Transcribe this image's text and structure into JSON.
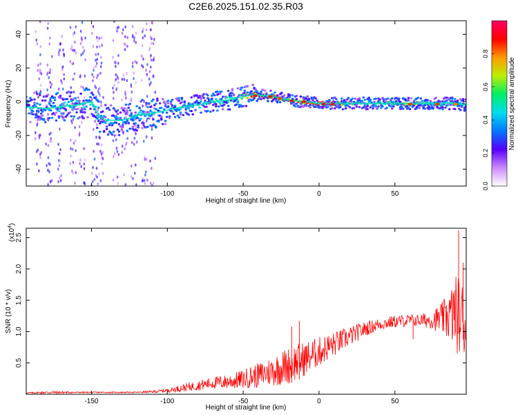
{
  "figure": {
    "title": "C2E6.2025.151.02.35.R03"
  },
  "chart_data": [
    {
      "type": "heatmap",
      "title": "C2E6.2025.151.02.35.R03",
      "xlabel": "Height of straight line (km)",
      "ylabel": "Frequency (Hz)",
      "xlim": [
        -193,
        97
      ],
      "ylim": [
        -50,
        48
      ],
      "xticks": [
        -150,
        -100,
        -50,
        0,
        50
      ],
      "yticks": [
        -40,
        -20,
        0,
        20,
        40
      ],
      "colorbar": {
        "label": "Normalized spectral amplitude",
        "range": [
          0,
          1
        ],
        "ticks": [
          "0.0",
          "0.2",
          "0.4",
          "0.6",
          "0.8"
        ],
        "colormap": [
          "#ffffff",
          "#cc88ff",
          "#5500ff",
          "#0077ff",
          "#00ddee",
          "#00ee66",
          "#bbee00",
          "#ff9900",
          "#ff0000",
          "#ff0066"
        ]
      },
      "ridge": {
        "x": [
          -193,
          -180,
          -170,
          -160,
          -150,
          -145,
          -140,
          -130,
          -125,
          -120,
          -110,
          -100,
          -90,
          -80,
          -70,
          -60,
          -50,
          -45,
          -40,
          -30,
          -20,
          -10,
          0,
          10,
          20,
          30,
          40,
          50,
          60,
          70,
          80,
          90,
          97
        ],
        "frequency_hz": [
          -3,
          -4,
          -3,
          -2,
          0,
          -9,
          -11,
          -11,
          -10,
          -8,
          -7,
          -5,
          -3,
          -2,
          0,
          1,
          3,
          4,
          4,
          3,
          1,
          0,
          -1,
          -1,
          -1,
          -1,
          -1,
          -1,
          -1,
          -1,
          -1,
          -1,
          -2
        ],
        "peak_amplitude": [
          0.45,
          0.4,
          0.45,
          0.5,
          0.5,
          0.45,
          0.4,
          0.45,
          0.4,
          0.45,
          0.45,
          0.4,
          0.45,
          0.45,
          0.5,
          0.55,
          0.6,
          0.9,
          0.85,
          0.85,
          0.9,
          0.9,
          0.95,
          0.95,
          0.6,
          0.5,
          0.55,
          0.6,
          0.8,
          0.55,
          0.55,
          0.5,
          0.4
        ]
      },
      "hotspots": [
        {
          "x": -42,
          "f": 3.5,
          "amplitude": 0.9
        },
        {
          "x": -32,
          "f": 3,
          "amplitude": 0.9
        },
        {
          "x": -26,
          "f": 2,
          "amplitude": 0.85
        },
        {
          "x": -18,
          "f": 0.5,
          "amplitude": 0.9
        },
        {
          "x": -10,
          "f": 0,
          "amplitude": 0.9
        },
        {
          "x": 3,
          "f": -1.5,
          "amplitude": 0.95
        },
        {
          "x": 9,
          "f": -1.5,
          "amplitude": 0.95
        },
        {
          "x": 60,
          "f": -1.5,
          "amplitude": 0.85
        },
        {
          "x": 78,
          "f": -1.5,
          "amplitude": 0.85
        },
        {
          "x": 90,
          "f": -1.5,
          "amplitude": 0.8
        }
      ],
      "scatter_columns_x": [
        -185,
        -178,
        -170,
        -162,
        -156,
        -148,
        -144,
        -134,
        -128,
        -122,
        -115,
        -110
      ]
    },
    {
      "type": "line",
      "xlabel": "Height of straight line (km)",
      "ylabel": "SNR (10 * v/v)",
      "y_multiplier": "(x10^4)",
      "y_multiplier_base": "(x10",
      "y_multiplier_exp": "4",
      "xlim": [
        -193,
        97
      ],
      "ylim": [
        0,
        2.65
      ],
      "xticks": [
        -150,
        -100,
        -50,
        0,
        50
      ],
      "yticks": [
        0.5,
        1.0,
        1.5,
        2.0,
        2.5
      ],
      "ytick_labels": [
        "0.5",
        "1.0",
        "1.5",
        "2.0",
        "2.5"
      ],
      "color": "#ff0000",
      "series": [
        {
          "x": [
            -193,
            -180,
            -170,
            -160,
            -150,
            -140,
            -130,
            -120,
            -110,
            -100,
            -90,
            -80,
            -70,
            -60,
            -50,
            -45,
            -40,
            -35,
            -30,
            -25,
            -20,
            -15,
            -10,
            -5,
            0,
            5,
            10,
            15,
            20,
            25,
            30,
            35,
            40,
            45,
            50,
            55,
            60,
            65,
            70,
            75,
            80,
            85,
            90,
            93,
            97
          ],
          "values": [
            0.02,
            0.03,
            0.03,
            0.03,
            0.03,
            0.03,
            0.03,
            0.03,
            0.04,
            0.06,
            0.1,
            0.14,
            0.18,
            0.2,
            0.24,
            0.28,
            0.3,
            0.34,
            0.38,
            0.42,
            0.46,
            0.52,
            0.56,
            0.62,
            0.68,
            0.74,
            0.8,
            0.86,
            0.92,
            0.98,
            1.04,
            1.08,
            1.12,
            1.14,
            1.16,
            1.17,
            1.18,
            1.18,
            1.18,
            1.19,
            1.2,
            1.24,
            1.3,
            1.25,
            1.1
          ],
          "noise_amplitude": [
            0.01,
            0.02,
            0.02,
            0.01,
            0.01,
            0.01,
            0.01,
            0.01,
            0.02,
            0.03,
            0.06,
            0.08,
            0.1,
            0.12,
            0.15,
            0.18,
            0.2,
            0.22,
            0.25,
            0.28,
            0.3,
            0.3,
            0.28,
            0.26,
            0.24,
            0.22,
            0.2,
            0.18,
            0.16,
            0.14,
            0.12,
            0.11,
            0.1,
            0.1,
            0.1,
            0.1,
            0.1,
            0.1,
            0.12,
            0.15,
            0.25,
            0.35,
            0.6,
            0.7,
            0.5
          ]
        }
      ],
      "peaks": [
        {
          "x": -18,
          "y": 1.08
        },
        {
          "x": -13,
          "y": 1.17
        },
        {
          "x": 62,
          "y": 1.23
        },
        {
          "x": 84,
          "y": 1.42
        },
        {
          "x": 92,
          "y": 2.62
        },
        {
          "x": 95,
          "y": 2.1
        }
      ]
    }
  ]
}
